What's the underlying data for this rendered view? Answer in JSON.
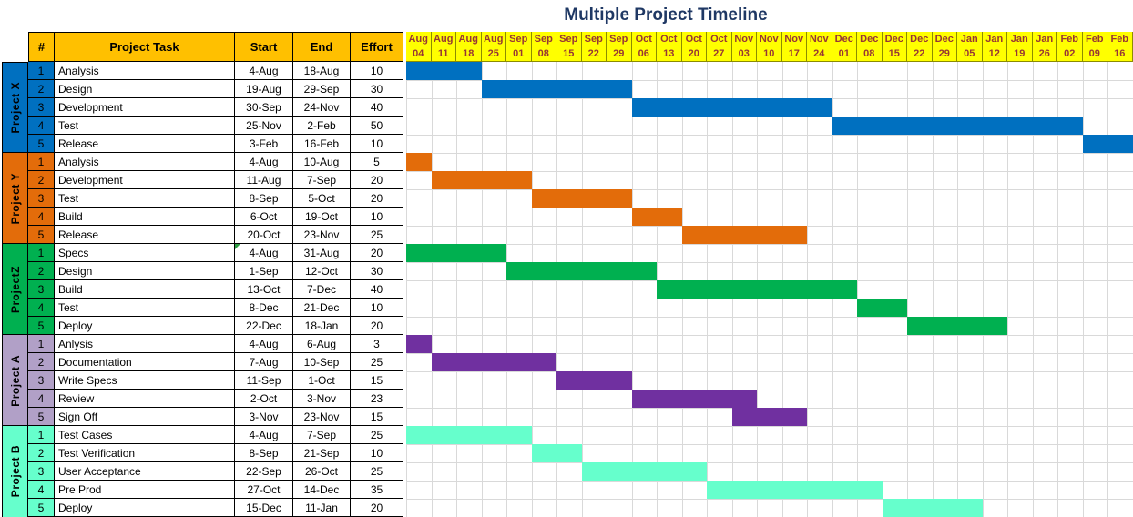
{
  "title": "Multiple Project Timeline",
  "table": {
    "headers": {
      "num": "#",
      "task": "Project Task",
      "start": "Start",
      "end": "End",
      "effort": "Effort"
    }
  },
  "colors": {
    "header_bg": "#FFC000",
    "week_header_bg": "#FFFF00",
    "week_header_text": "#963634",
    "title_text": "#1F3864",
    "grid_line": "#D9D9D9",
    "table_border": "#000000"
  },
  "chart_data": {
    "type": "bar",
    "subtype": "gantt",
    "title": "Multiple Project Timeline",
    "x_axis_weeks": [
      [
        "Aug",
        "04"
      ],
      [
        "Aug",
        "11"
      ],
      [
        "Aug",
        "18"
      ],
      [
        "Aug",
        "25"
      ],
      [
        "Sep",
        "01"
      ],
      [
        "Sep",
        "08"
      ],
      [
        "Sep",
        "15"
      ],
      [
        "Sep",
        "22"
      ],
      [
        "Sep",
        "29"
      ],
      [
        "Oct",
        "06"
      ],
      [
        "Oct",
        "13"
      ],
      [
        "Oct",
        "20"
      ],
      [
        "Oct",
        "27"
      ],
      [
        "Nov",
        "03"
      ],
      [
        "Nov",
        "10"
      ],
      [
        "Nov",
        "17"
      ],
      [
        "Nov",
        "24"
      ],
      [
        "Dec",
        "01"
      ],
      [
        "Dec",
        "08"
      ],
      [
        "Dec",
        "15"
      ],
      [
        "Dec",
        "22"
      ],
      [
        "Dec",
        "29"
      ],
      [
        "Jan",
        "05"
      ],
      [
        "Jan",
        "12"
      ],
      [
        "Jan",
        "19"
      ],
      [
        "Jan",
        "26"
      ],
      [
        "Feb",
        "02"
      ],
      [
        "Feb",
        "09"
      ],
      [
        "Feb",
        "16"
      ]
    ],
    "projects": [
      {
        "name": "Project X",
        "group_color": "#0070C0",
        "bar_color": "#0070C0",
        "tasks": [
          {
            "num": "1",
            "task": "Analysis",
            "start": "4-Aug",
            "end": "18-Aug",
            "effort": "10",
            "bar": [
              1,
              3
            ]
          },
          {
            "num": "2",
            "task": "Design",
            "start": "19-Aug",
            "end": "29-Sep",
            "effort": "30",
            "bar": [
              4,
              9
            ]
          },
          {
            "num": "3",
            "task": "Development",
            "start": "30-Sep",
            "end": "24-Nov",
            "effort": "40",
            "bar": [
              10,
              17
            ]
          },
          {
            "num": "4",
            "task": "Test",
            "start": "25-Nov",
            "end": "2-Feb",
            "effort": "50",
            "bar": [
              18,
              27
            ]
          },
          {
            "num": "5",
            "task": "Release",
            "start": "3-Feb",
            "end": "16-Feb",
            "effort": "10",
            "bar": [
              28,
              29
            ]
          }
        ]
      },
      {
        "name": "Project Y",
        "group_color": "#E36C0A",
        "bar_color": "#E36C0A",
        "tasks": [
          {
            "num": "1",
            "task": "Analysis",
            "start": "4-Aug",
            "end": "10-Aug",
            "effort": "5",
            "bar": [
              1,
              1
            ]
          },
          {
            "num": "2",
            "task": "Development",
            "start": "11-Aug",
            "end": "7-Sep",
            "effort": "20",
            "bar": [
              2,
              5
            ]
          },
          {
            "num": "3",
            "task": "Test",
            "start": "8-Sep",
            "end": "5-Oct",
            "effort": "20",
            "bar": [
              6,
              9
            ]
          },
          {
            "num": "4",
            "task": "Build",
            "start": "6-Oct",
            "end": "19-Oct",
            "effort": "10",
            "bar": [
              10,
              11
            ]
          },
          {
            "num": "5",
            "task": "Release",
            "start": "20-Oct",
            "end": "23-Nov",
            "effort": "25",
            "bar": [
              12,
              16
            ]
          }
        ]
      },
      {
        "name": "ProjectZ",
        "group_color": "#00B050",
        "bar_color": "#00B050",
        "tasks": [
          {
            "num": "1",
            "task": "Specs",
            "start": "4-Aug",
            "end": "31-Aug",
            "effort": "20",
            "bar": [
              1,
              4
            ],
            "start_cell_comment_flag": true
          },
          {
            "num": "2",
            "task": "Design",
            "start": "1-Sep",
            "end": "12-Oct",
            "effort": "30",
            "bar": [
              5,
              10
            ]
          },
          {
            "num": "3",
            "task": "Build",
            "start": "13-Oct",
            "end": "7-Dec",
            "effort": "40",
            "bar": [
              11,
              18
            ]
          },
          {
            "num": "4",
            "task": "Test",
            "start": "8-Dec",
            "end": "21-Dec",
            "effort": "10",
            "bar": [
              19,
              20
            ]
          },
          {
            "num": "5",
            "task": "Deploy",
            "start": "22-Dec",
            "end": "18-Jan",
            "effort": "20",
            "bar": [
              21,
              24
            ]
          }
        ]
      },
      {
        "name": "Project A",
        "group_color": "#B1A0C7",
        "bar_color": "#7030A0",
        "tasks": [
          {
            "num": "1",
            "task": "Anlysis",
            "start": "4-Aug",
            "end": "6-Aug",
            "effort": "3",
            "bar": [
              1,
              1
            ]
          },
          {
            "num": "2",
            "task": "Documentation",
            "start": "7-Aug",
            "end": "10-Sep",
            "effort": "25",
            "bar": [
              2,
              6
            ]
          },
          {
            "num": "3",
            "task": "Write Specs",
            "start": "11-Sep",
            "end": "1-Oct",
            "effort": "15",
            "bar": [
              7,
              9
            ]
          },
          {
            "num": "4",
            "task": "Review",
            "start": "2-Oct",
            "end": "3-Nov",
            "effort": "23",
            "bar": [
              10,
              14
            ]
          },
          {
            "num": "5",
            "task": "Sign Off",
            "start": "3-Nov",
            "end": "23-Nov",
            "effort": "15",
            "bar": [
              14,
              16
            ]
          }
        ]
      },
      {
        "name": "Project B",
        "group_color": "#66FFCC",
        "bar_color": "#66FFCC",
        "tasks": [
          {
            "num": "1",
            "task": "Test Cases",
            "start": "4-Aug",
            "end": "7-Sep",
            "effort": "25",
            "bar": [
              1,
              5
            ]
          },
          {
            "num": "2",
            "task": "Test Verification",
            "start": "8-Sep",
            "end": "21-Sep",
            "effort": "10",
            "bar": [
              6,
              7
            ]
          },
          {
            "num": "3",
            "task": "User Acceptance",
            "start": "22-Sep",
            "end": "26-Oct",
            "effort": "25",
            "bar": [
              8,
              12
            ]
          },
          {
            "num": "4",
            "task": "Pre Prod",
            "start": "27-Oct",
            "end": "14-Dec",
            "effort": "35",
            "bar": [
              13,
              19
            ]
          },
          {
            "num": "5",
            "task": "Deploy",
            "start": "15-Dec",
            "end": "11-Jan",
            "effort": "20",
            "bar": [
              20,
              23
            ]
          }
        ]
      }
    ]
  }
}
